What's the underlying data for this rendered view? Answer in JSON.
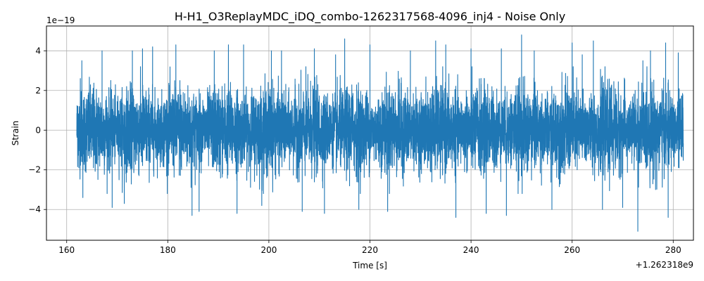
{
  "chart_data": {
    "type": "line",
    "title": "H-H1_O3ReplayMDC_iDQ_combo-1262317568-4096_inj4 - Noise Only",
    "xlabel": "Time [s]",
    "ylabel": "Strain",
    "x_offset_label": "+1.262318e9",
    "y_exponent_label": "1e−19",
    "xlim": [
      156,
      284
    ],
    "ylim": [
      -5.55,
      5.25
    ],
    "x_ticks": [
      160,
      180,
      200,
      220,
      240,
      260,
      280
    ],
    "x_tick_labels": [
      "160",
      "180",
      "200",
      "220",
      "240",
      "260",
      "280"
    ],
    "y_ticks": [
      -4,
      -2,
      0,
      2,
      4
    ],
    "y_tick_labels": [
      "−4",
      "−2",
      "0",
      "2",
      "4"
    ],
    "grid": true,
    "series": [
      {
        "color": "#1f77b4",
        "x_range": [
          162,
          282
        ],
        "y_peaks": [
          [
            162.2,
            1.2
          ],
          [
            162.4,
            -1.9
          ],
          [
            162.7,
            2.6
          ],
          [
            163.0,
            3.5
          ],
          [
            163.2,
            -3.4
          ],
          [
            167.0,
            4.0
          ],
          [
            169.0,
            -3.9
          ],
          [
            171.4,
            -3.7
          ],
          [
            173.0,
            4.0
          ],
          [
            175.0,
            4.1
          ],
          [
            177.0,
            4.2
          ],
          [
            181.6,
            4.3
          ],
          [
            182.4,
            2.5
          ],
          [
            184.8,
            -4.3
          ],
          [
            186.2,
            -4.1
          ],
          [
            189.2,
            4.0
          ],
          [
            192.0,
            4.3
          ],
          [
            193.7,
            -4.2
          ],
          [
            195.0,
            4.3
          ],
          [
            198.6,
            -3.8
          ],
          [
            200.5,
            4.0
          ],
          [
            202.5,
            4.0
          ],
          [
            206.6,
            -4.1
          ],
          [
            209.0,
            4.1
          ],
          [
            211.0,
            -4.2
          ],
          [
            213.2,
            3.8
          ],
          [
            215.0,
            4.6
          ],
          [
            217.8,
            -4.0
          ],
          [
            220.0,
            4.3
          ],
          [
            223.5,
            -4.1
          ],
          [
            228.0,
            4.0
          ],
          [
            233.0,
            4.5
          ],
          [
            235.0,
            4.3
          ],
          [
            237.0,
            -4.4
          ],
          [
            240.0,
            4.1
          ],
          [
            243.0,
            -4.2
          ],
          [
            246.0,
            4.1
          ],
          [
            247.0,
            -4.3
          ],
          [
            250.0,
            4.8
          ],
          [
            252.5,
            4.0
          ],
          [
            256.0,
            -4.0
          ],
          [
            260.0,
            4.4
          ],
          [
            262.0,
            3.8
          ],
          [
            264.2,
            4.5
          ],
          [
            266.0,
            -4.0
          ],
          [
            270.0,
            -3.9
          ],
          [
            273.0,
            -5.1
          ],
          [
            274.0,
            3.5
          ],
          [
            275.5,
            4.0
          ],
          [
            278.5,
            4.4
          ],
          [
            279.0,
            -4.4
          ],
          [
            281.0,
            3.9
          ]
        ]
      }
    ]
  }
}
